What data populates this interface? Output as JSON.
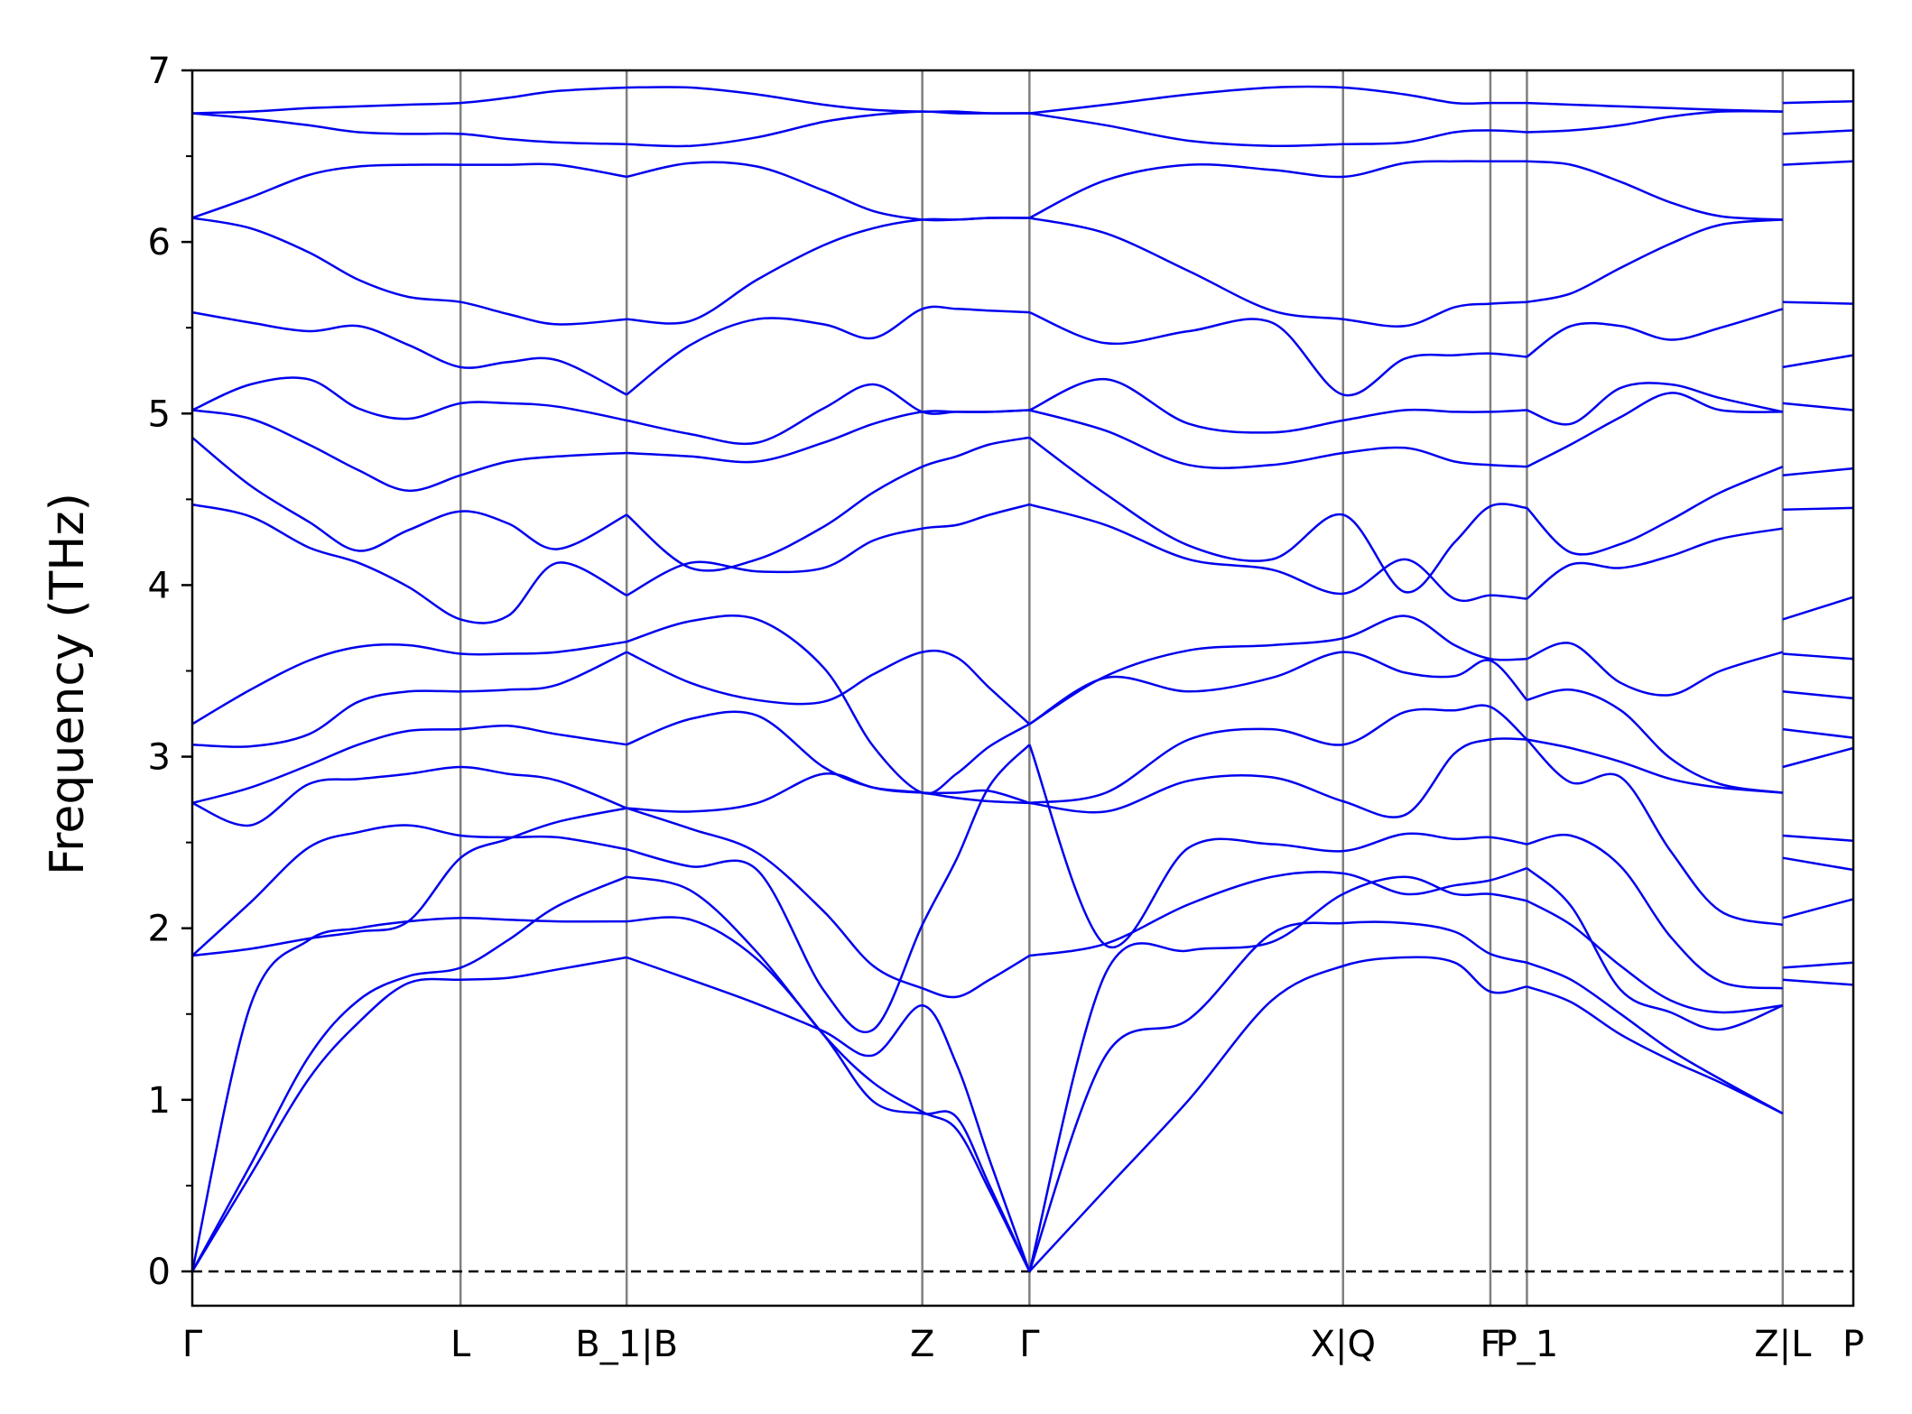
{
  "chart_data": {
    "type": "line",
    "title": "",
    "xlabel": "",
    "ylabel": "Frequency (THz)",
    "ylim": [
      -0.2,
      7.0
    ],
    "yticks": [
      0,
      1,
      2,
      3,
      4,
      5,
      6,
      7
    ],
    "grid": false,
    "legend": "none",
    "colors": {
      "bands": "#0000ee",
      "kpoint_lines": "#808080",
      "zero_line": "#000000",
      "axes": "#000000"
    },
    "kpoint_labels": [
      {
        "label": "Γ",
        "x": 0.0
      },
      {
        "label": "L",
        "x": 1.615
      },
      {
        "label": "B_1|B",
        "x": 2.615
      },
      {
        "label": "Z",
        "x": 4.395
      },
      {
        "label": "Γ",
        "x": 5.04
      },
      {
        "label": "X|Q",
        "x": 6.928
      },
      {
        "label": "F",
        "x": 7.815
      },
      {
        "label": "P_1",
        "x": 8.035
      },
      {
        "label": "Z|L",
        "x": 9.575
      },
      {
        "label": "P",
        "x": 10.0
      }
    ],
    "xlim": [
      0,
      10.0
    ],
    "segments": [
      {
        "path": "Γ-L-B_1",
        "x": [
          0.0,
          0.35,
          0.7,
          1.0,
          1.3,
          1.615,
          1.9,
          2.2,
          2.615
        ],
        "bands": [
          [
            0.0,
            0.56,
            1.12,
            1.45,
            1.68,
            1.7,
            1.71,
            1.76,
            1.83
          ],
          [
            0.0,
            0.62,
            1.25,
            1.58,
            1.72,
            1.77,
            1.93,
            2.13,
            2.3
          ],
          [
            0.0,
            1.55,
            1.93,
            2.0,
            2.04,
            2.06,
            2.05,
            2.04,
            2.04
          ],
          [
            1.84,
            1.88,
            1.94,
            1.98,
            2.04,
            2.41,
            2.52,
            2.62,
            2.7
          ],
          [
            1.84,
            2.15,
            2.47,
            2.56,
            2.6,
            2.54,
            2.53,
            2.53,
            2.46
          ],
          [
            2.73,
            2.6,
            2.84,
            2.87,
            2.9,
            2.94,
            2.9,
            2.86,
            2.7
          ],
          [
            2.73,
            2.82,
            2.95,
            3.07,
            3.15,
            3.16,
            3.18,
            3.13,
            3.07
          ],
          [
            3.07,
            3.06,
            3.13,
            3.32,
            3.38,
            3.38,
            3.39,
            3.42,
            3.61
          ],
          [
            3.19,
            3.39,
            3.56,
            3.64,
            3.65,
            3.6,
            3.6,
            3.61,
            3.67
          ],
          [
            4.47,
            4.4,
            4.22,
            4.13,
            3.99,
            3.8,
            3.82,
            4.13,
            3.94
          ],
          [
            4.86,
            4.58,
            4.37,
            4.2,
            4.32,
            4.43,
            4.36,
            4.21,
            4.41
          ],
          [
            5.02,
            4.97,
            4.82,
            4.67,
            4.55,
            4.64,
            4.72,
            4.75,
            4.77
          ],
          [
            5.02,
            5.17,
            5.2,
            5.03,
            4.97,
            5.06,
            5.06,
            5.04,
            4.96
          ],
          [
            5.59,
            5.53,
            5.48,
            5.51,
            5.4,
            5.27,
            5.3,
            5.31,
            5.11
          ],
          [
            6.14,
            6.08,
            5.94,
            5.78,
            5.68,
            5.65,
            5.58,
            5.52,
            5.55
          ],
          [
            6.14,
            6.26,
            6.39,
            6.44,
            6.45,
            6.45,
            6.45,
            6.45,
            6.38
          ],
          [
            6.75,
            6.72,
            6.68,
            6.64,
            6.63,
            6.63,
            6.6,
            6.58,
            6.57
          ],
          [
            6.75,
            6.76,
            6.78,
            6.79,
            6.8,
            6.81,
            6.84,
            6.88,
            6.9
          ]
        ]
      },
      {
        "path": "B-Z-Γ",
        "x": [
          2.615,
          3.0,
          3.4,
          3.8,
          4.1,
          4.395,
          4.6,
          4.8,
          5.04
        ],
        "bands": [
          [
            1.83,
            1.7,
            1.56,
            1.4,
            1.26,
            1.55,
            1.21,
            0.65,
            0.0
          ],
          [
            2.3,
            2.22,
            1.86,
            1.38,
            1.1,
            0.93,
            0.83,
            0.47,
            0.0
          ],
          [
            2.04,
            2.05,
            1.82,
            1.38,
            0.99,
            0.92,
            0.9,
            0.5,
            0.0
          ],
          [
            2.7,
            2.58,
            2.44,
            2.1,
            1.78,
            1.65,
            1.6,
            1.7,
            1.84
          ],
          [
            2.46,
            2.36,
            2.34,
            1.64,
            1.41,
            2.02,
            2.4,
            2.83,
            3.07
          ],
          [
            2.7,
            2.68,
            2.73,
            2.9,
            2.82,
            2.79,
            2.76,
            2.74,
            2.73
          ],
          [
            3.07,
            3.22,
            3.24,
            2.94,
            2.82,
            2.79,
            2.79,
            2.8,
            2.73
          ],
          [
            3.61,
            3.43,
            3.33,
            3.32,
            3.48,
            3.61,
            3.58,
            3.4,
            3.19
          ],
          [
            3.67,
            3.79,
            3.8,
            3.52,
            3.06,
            2.79,
            2.9,
            3.06,
            3.19
          ],
          [
            3.94,
            4.13,
            4.08,
            4.1,
            4.26,
            4.33,
            4.35,
            4.41,
            4.47
          ],
          [
            4.41,
            4.1,
            4.15,
            4.34,
            4.54,
            4.69,
            4.75,
            4.82,
            4.86
          ],
          [
            4.77,
            4.75,
            4.72,
            4.83,
            4.94,
            5.01,
            5.01,
            5.01,
            5.02
          ],
          [
            4.96,
            4.88,
            4.83,
            5.03,
            5.17,
            5.01,
            5.01,
            5.01,
            5.02
          ],
          [
            5.11,
            5.4,
            5.55,
            5.52,
            5.44,
            5.61,
            5.61,
            5.6,
            5.59
          ],
          [
            5.55,
            5.54,
            5.78,
            5.98,
            6.08,
            6.13,
            6.13,
            6.14,
            6.14
          ],
          [
            6.38,
            6.46,
            6.44,
            6.3,
            6.18,
            6.13,
            6.13,
            6.14,
            6.14
          ],
          [
            6.57,
            6.56,
            6.61,
            6.7,
            6.74,
            6.76,
            6.75,
            6.75,
            6.75
          ],
          [
            6.9,
            6.9,
            6.86,
            6.8,
            6.77,
            6.76,
            6.76,
            6.75,
            6.75
          ]
        ]
      },
      {
        "path": "Γ-X|Q-F-P_1",
        "x": [
          5.04,
          5.5,
          6.0,
          6.5,
          6.928,
          7.3,
          7.6,
          7.815,
          8.035
        ],
        "bands": [
          [
            0.0,
            0.48,
            1.0,
            1.58,
            1.78,
            1.83,
            1.8,
            1.63,
            1.66
          ],
          [
            0.0,
            1.26,
            1.47,
            1.97,
            2.03,
            2.03,
            1.98,
            1.85,
            1.8
          ],
          [
            0.0,
            1.74,
            1.87,
            1.92,
            2.2,
            2.3,
            2.2,
            2.2,
            2.16
          ],
          [
            1.84,
            1.91,
            2.14,
            2.3,
            2.32,
            2.2,
            2.25,
            2.28,
            2.35
          ],
          [
            3.07,
            1.9,
            2.47,
            2.49,
            2.45,
            2.55,
            2.52,
            2.53,
            2.49
          ],
          [
            2.73,
            2.68,
            2.86,
            2.88,
            2.74,
            2.66,
            3.02,
            3.1,
            3.1
          ],
          [
            2.73,
            2.79,
            3.1,
            3.16,
            3.07,
            3.26,
            3.27,
            3.29,
            3.1
          ],
          [
            3.19,
            3.46,
            3.38,
            3.46,
            3.61,
            3.49,
            3.47,
            3.56,
            3.33
          ],
          [
            3.19,
            3.47,
            3.62,
            3.65,
            3.69,
            3.82,
            3.65,
            3.57,
            3.57
          ],
          [
            4.47,
            4.35,
            4.15,
            4.09,
            3.95,
            4.15,
            3.92,
            3.94,
            3.92
          ],
          [
            4.86,
            4.53,
            4.23,
            4.15,
            4.41,
            3.96,
            4.25,
            4.46,
            4.45
          ],
          [
            5.02,
            4.9,
            4.7,
            4.7,
            4.77,
            4.8,
            4.72,
            4.7,
            4.69
          ],
          [
            5.02,
            5.2,
            4.94,
            4.89,
            4.96,
            5.02,
            5.01,
            5.01,
            5.02
          ],
          [
            5.59,
            5.41,
            5.48,
            5.53,
            5.11,
            5.32,
            5.34,
            5.35,
            5.33
          ],
          [
            6.14,
            6.05,
            5.83,
            5.6,
            5.55,
            5.51,
            5.62,
            5.64,
            5.65
          ],
          [
            6.14,
            6.36,
            6.45,
            6.42,
            6.38,
            6.46,
            6.47,
            6.47,
            6.47
          ],
          [
            6.75,
            6.68,
            6.59,
            6.56,
            6.57,
            6.58,
            6.64,
            6.65,
            6.64
          ],
          [
            6.75,
            6.8,
            6.86,
            6.9,
            6.9,
            6.86,
            6.81,
            6.81,
            6.81
          ]
        ]
      },
      {
        "path": "P_1-Z",
        "x": [
          8.035,
          8.3,
          8.6,
          8.9,
          9.2,
          9.575
        ],
        "bands": [
          [
            1.66,
            1.57,
            1.38,
            1.23,
            1.1,
            0.92
          ],
          [
            1.8,
            1.7,
            1.5,
            1.29,
            1.12,
            0.92
          ],
          [
            2.16,
            2.02,
            1.78,
            1.58,
            1.51,
            1.55
          ],
          [
            2.35,
            2.13,
            1.64,
            1.51,
            1.41,
            1.55
          ],
          [
            2.49,
            2.54,
            2.36,
            1.95,
            1.69,
            1.65
          ],
          [
            3.1,
            2.85,
            2.88,
            2.45,
            2.1,
            2.02
          ],
          [
            3.1,
            3.05,
            2.97,
            2.87,
            2.82,
            2.79
          ],
          [
            3.33,
            3.39,
            3.27,
            2.99,
            2.84,
            2.79
          ],
          [
            3.57,
            3.66,
            3.43,
            3.36,
            3.5,
            3.61
          ],
          [
            3.92,
            4.12,
            4.1,
            4.17,
            4.27,
            4.33
          ],
          [
            4.45,
            4.19,
            4.24,
            4.38,
            4.54,
            4.69
          ],
          [
            4.69,
            4.82,
            4.98,
            5.12,
            5.02,
            5.01
          ],
          [
            5.02,
            4.94,
            5.15,
            5.17,
            5.09,
            5.01
          ],
          [
            5.33,
            5.51,
            5.51,
            5.43,
            5.5,
            5.61
          ],
          [
            5.65,
            5.7,
            5.85,
            5.99,
            6.1,
            6.13
          ],
          [
            6.47,
            6.45,
            6.35,
            6.23,
            6.15,
            6.13
          ],
          [
            6.64,
            6.65,
            6.68,
            6.73,
            6.76,
            6.76
          ],
          [
            6.81,
            6.8,
            6.79,
            6.78,
            6.77,
            6.76
          ]
        ]
      },
      {
        "path": "L-P",
        "x": [
          9.575,
          10.0
        ],
        "bands": [
          [
            1.7,
            1.67
          ],
          [
            1.77,
            1.8
          ],
          [
            2.06,
            2.17
          ],
          [
            2.41,
            2.34
          ],
          [
            2.54,
            2.51
          ],
          [
            2.94,
            3.05
          ],
          [
            3.16,
            3.11
          ],
          [
            3.38,
            3.34
          ],
          [
            3.6,
            3.57
          ],
          [
            3.8,
            3.93
          ],
          [
            4.44,
            4.45
          ],
          [
            4.64,
            4.68
          ],
          [
            5.06,
            5.02
          ],
          [
            5.27,
            5.34
          ],
          [
            5.65,
            5.64
          ],
          [
            6.45,
            6.47
          ],
          [
            6.63,
            6.65
          ],
          [
            6.81,
            6.82
          ]
        ]
      }
    ]
  }
}
